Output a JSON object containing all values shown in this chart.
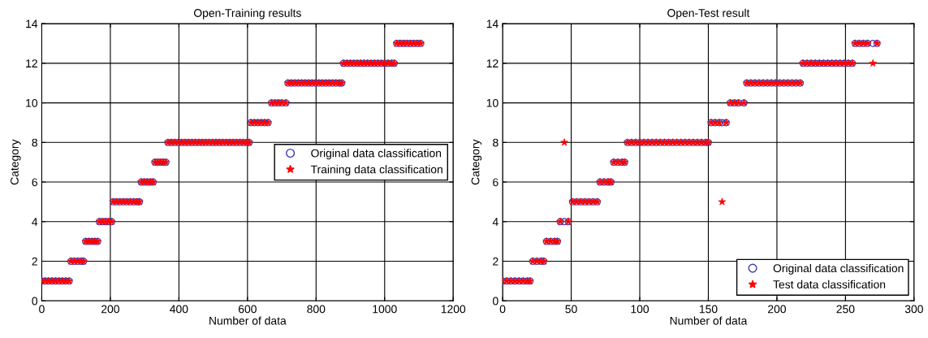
{
  "chart_data": [
    {
      "type": "scatter",
      "title": "Open-Training results",
      "xlabel": "Number of data",
      "ylabel": "Category",
      "x": [
        0,
        10,
        20,
        30,
        40,
        50,
        60,
        70,
        80,
        85,
        95,
        105,
        115,
        122,
        128,
        137,
        146,
        155,
        163,
        168,
        177,
        186,
        195,
        204,
        208,
        218,
        228,
        238,
        248,
        258,
        268,
        278,
        285,
        290,
        299,
        308,
        317,
        325,
        330,
        338,
        346,
        354,
        362,
        368,
        378,
        388,
        398,
        408,
        418,
        428,
        438,
        448,
        458,
        468,
        478,
        488,
        498,
        508,
        518,
        528,
        538,
        548,
        558,
        568,
        578,
        588,
        598,
        605,
        610,
        620,
        630,
        640,
        650,
        660,
        670,
        680,
        690,
        700,
        712,
        718,
        728,
        738,
        748,
        758,
        768,
        778,
        788,
        798,
        808,
        818,
        828,
        838,
        848,
        858,
        868,
        875,
        880,
        890,
        900,
        910,
        920,
        930,
        940,
        950,
        960,
        970,
        980,
        990,
        1000,
        1010,
        1020,
        1028,
        1035,
        1045,
        1055,
        1065,
        1075,
        1085,
        1095,
        1105
      ],
      "series": [
        {
          "name": "Original data classification",
          "color": "#3c3cb4",
          "marker": "circle",
          "values": [
            1,
            1,
            1,
            1,
            1,
            1,
            1,
            1,
            1,
            2,
            2,
            2,
            2,
            2,
            3,
            3,
            3,
            3,
            3,
            4,
            4,
            4,
            4,
            4,
            5,
            5,
            5,
            5,
            5,
            5,
            5,
            5,
            5,
            6,
            6,
            6,
            6,
            6,
            7,
            7,
            7,
            7,
            7,
            8,
            8,
            8,
            8,
            8,
            8,
            8,
            8,
            8,
            8,
            8,
            8,
            8,
            8,
            8,
            8,
            8,
            8,
            8,
            8,
            8,
            8,
            8,
            8,
            8,
            9,
            9,
            9,
            9,
            9,
            9,
            10,
            10,
            10,
            10,
            10,
            11,
            11,
            11,
            11,
            11,
            11,
            11,
            11,
            11,
            11,
            11,
            11,
            11,
            11,
            11,
            11,
            11,
            12,
            12,
            12,
            12,
            12,
            12,
            12,
            12,
            12,
            12,
            12,
            12,
            12,
            12,
            12,
            12,
            13,
            13,
            13,
            13,
            13,
            13,
            13,
            13
          ]
        },
        {
          "name": "Training data classification",
          "color": "#ff0000",
          "marker": "star",
          "values": [
            1,
            1,
            1,
            1,
            1,
            1,
            1,
            1,
            1,
            2,
            2,
            2,
            2,
            2,
            3,
            3,
            3,
            3,
            3,
            4,
            4,
            4,
            4,
            4,
            5,
            5,
            5,
            5,
            5,
            5,
            5,
            5,
            5,
            6,
            6,
            6,
            6,
            6,
            7,
            7,
            7,
            7,
            7,
            8,
            8,
            8,
            8,
            8,
            8,
            8,
            8,
            8,
            8,
            8,
            8,
            8,
            8,
            8,
            8,
            8,
            8,
            8,
            8,
            8,
            8,
            8,
            8,
            8,
            9,
            9,
            9,
            9,
            9,
            9,
            10,
            10,
            10,
            10,
            10,
            11,
            11,
            11,
            11,
            11,
            11,
            11,
            11,
            11,
            11,
            11,
            11,
            11,
            11,
            11,
            11,
            11,
            12,
            12,
            12,
            12,
            12,
            12,
            12,
            12,
            12,
            12,
            12,
            12,
            12,
            12,
            12,
            12,
            13,
            13,
            13,
            13,
            13,
            13,
            13,
            13
          ]
        }
      ],
      "xlim": [
        0,
        1200
      ],
      "xticks": [
        0,
        200,
        400,
        600,
        800,
        1000,
        1200
      ],
      "ylim": [
        0,
        14
      ],
      "yticks": [
        0,
        2,
        4,
        6,
        8,
        10,
        12,
        14
      ],
      "grid": true,
      "legend": "center right"
    },
    {
      "type": "scatter",
      "title": "Open-Test result",
      "xlabel": "Number of data",
      "ylabel": "Category",
      "x": [
        0,
        3,
        6,
        9,
        12,
        15,
        18,
        20,
        22,
        25,
        28,
        30,
        32,
        35,
        38,
        40,
        42,
        45,
        48,
        51,
        54,
        57,
        60,
        63,
        66,
        69,
        71,
        74,
        77,
        79,
        81,
        84,
        87,
        89,
        91,
        94,
        97,
        100,
        103,
        106,
        109,
        112,
        115,
        118,
        121,
        124,
        127,
        130,
        133,
        136,
        139,
        142,
        145,
        148,
        150,
        152,
        155,
        158,
        160,
        163,
        166,
        169,
        172,
        176,
        178,
        181,
        184,
        187,
        190,
        193,
        196,
        199,
        202,
        205,
        208,
        211,
        214,
        217,
        219,
        222,
        225,
        228,
        231,
        234,
        237,
        240,
        243,
        246,
        249,
        252,
        255,
        257,
        260,
        263,
        266,
        270,
        273
      ],
      "series": [
        {
          "name": "Original data classification",
          "color": "#3c3cb4",
          "marker": "circle",
          "values": [
            1,
            1,
            1,
            1,
            1,
            1,
            1,
            1,
            2,
            2,
            2,
            2,
            3,
            3,
            3,
            3,
            4,
            4,
            4,
            5,
            5,
            5,
            5,
            5,
            5,
            5,
            6,
            6,
            6,
            6,
            7,
            7,
            7,
            7,
            8,
            8,
            8,
            8,
            8,
            8,
            8,
            8,
            8,
            8,
            8,
            8,
            8,
            8,
            8,
            8,
            8,
            8,
            8,
            8,
            8,
            9,
            9,
            9,
            9,
            9,
            10,
            10,
            10,
            10,
            11,
            11,
            11,
            11,
            11,
            11,
            11,
            11,
            11,
            11,
            11,
            11,
            11,
            11,
            12,
            12,
            12,
            12,
            12,
            12,
            12,
            12,
            12,
            12,
            12,
            12,
            12,
            13,
            13,
            13,
            13,
            13,
            13
          ]
        },
        {
          "name": "Test data classification",
          "color": "#ff0000",
          "marker": "star",
          "values": [
            1,
            1,
            1,
            1,
            1,
            1,
            1,
            1,
            2,
            2,
            2,
            2,
            3,
            3,
            3,
            3,
            4,
            8,
            4,
            5,
            5,
            5,
            5,
            5,
            5,
            5,
            6,
            6,
            6,
            6,
            7,
            7,
            7,
            7,
            8,
            8,
            8,
            8,
            8,
            8,
            8,
            8,
            8,
            8,
            8,
            8,
            8,
            8,
            8,
            8,
            8,
            8,
            8,
            8,
            8,
            9,
            9,
            9,
            5,
            9,
            10,
            10,
            10,
            10,
            11,
            11,
            11,
            11,
            11,
            11,
            11,
            11,
            11,
            11,
            11,
            11,
            11,
            11,
            12,
            12,
            12,
            12,
            12,
            12,
            12,
            12,
            12,
            12,
            12,
            12,
            12,
            13,
            13,
            13,
            13,
            12,
            13
          ]
        }
      ],
      "xlim": [
        0,
        300
      ],
      "xticks": [
        0,
        50,
        100,
        150,
        200,
        250,
        300
      ],
      "ylim": [
        0,
        14
      ],
      "yticks": [
        0,
        2,
        4,
        6,
        8,
        10,
        12,
        14
      ],
      "grid": true,
      "legend": "lower right"
    }
  ]
}
